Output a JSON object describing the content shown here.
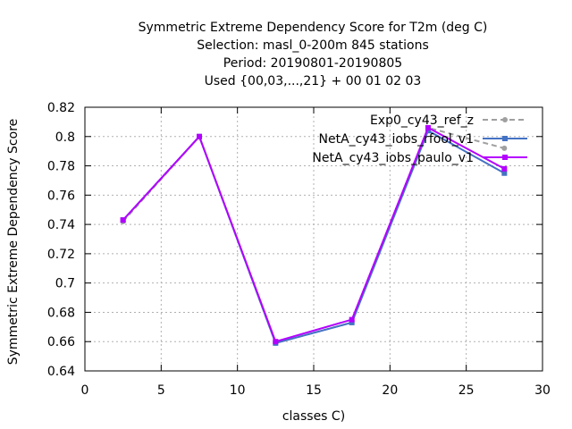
{
  "chart_data": {
    "type": "line",
    "title_lines": [
      "Symmetric Extreme Dependency Score  for T2m (deg C)",
      "Selection: masl_0-200m    845 stations",
      "Period: 20190801-20190805",
      "Used {00,03,...,21} + 00 01 02 03"
    ],
    "xlabel": "classes C)",
    "ylabel": "Symmetric Extreme Dependency Score",
    "xlim": [
      0,
      30
    ],
    "ylim": [
      0.64,
      0.82
    ],
    "xticks": [
      0,
      5,
      10,
      15,
      20,
      25,
      30
    ],
    "yticks": [
      0.64,
      0.66,
      0.68,
      0.7,
      0.72,
      0.74,
      0.76,
      0.78,
      0.8,
      0.82
    ],
    "grid": true,
    "legend_position": "top-right",
    "x": [
      2.5,
      7.5,
      12.5,
      17.5,
      22.5,
      27.5
    ],
    "series": [
      {
        "name": "Exp0_cy43_ref_z",
        "color": "#a0a0a0",
        "dash": true,
        "marker": "circle",
        "values": [
          0.742,
          0.8,
          0.659,
          0.673,
          0.806,
          0.792
        ]
      },
      {
        "name": "NetA_cy43_iobs_rfool_v1",
        "color": "#4472c4",
        "dash": false,
        "marker": "square",
        "values": [
          0.743,
          0.8,
          0.659,
          0.673,
          0.804,
          0.775
        ]
      },
      {
        "name": "NetA_cy43_iobs_paulo_v1",
        "color": "#b400ff",
        "dash": false,
        "marker": "square",
        "values": [
          0.743,
          0.8,
          0.66,
          0.675,
          0.806,
          0.778
        ]
      }
    ]
  }
}
